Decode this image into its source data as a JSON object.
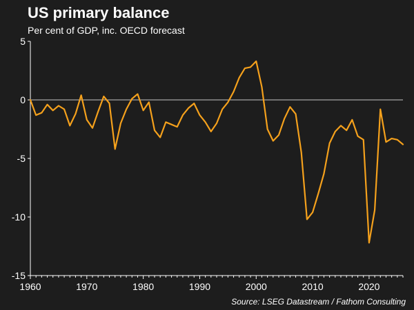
{
  "title": "US primary balance",
  "subtitle": "Per cent of GDP, inc. OECD forecast",
  "source": "Source: LSEG Datastream / Fathom Consulting",
  "colors": {
    "line": "#f5a11c",
    "background": "#1d1d1d",
    "axis": "#ffffff",
    "zero_line": "#ffffff"
  },
  "chart_data": {
    "type": "line",
    "title": "US primary balance",
    "subtitle": "Per cent of GDP, inc. OECD forecast",
    "xlabel": "",
    "ylabel": "",
    "xlim": [
      1960,
      2026
    ],
    "ylim": [
      -15,
      5
    ],
    "grid": false,
    "x_ticks": [
      1960,
      1970,
      1980,
      1990,
      2000,
      2010,
      2020
    ],
    "y_ticks": [
      5,
      0,
      -5,
      -10,
      -15
    ],
    "x_tick_labels": [
      "1960",
      "1970",
      "1980",
      "1990",
      "2000",
      "2010",
      "2020"
    ],
    "y_tick_labels": [
      "5",
      "0",
      "-5",
      "-10",
      "-15"
    ],
    "series": [
      {
        "x": [
          1960,
          1961,
          1962,
          1963,
          1964,
          1965,
          1966,
          1967,
          1968,
          1969,
          1970,
          1971,
          1972,
          1973,
          1974,
          1975,
          1976,
          1977,
          1978,
          1979,
          1980,
          1981,
          1982,
          1983,
          1984,
          1985,
          1986,
          1987,
          1988,
          1989,
          1990,
          1991,
          1992,
          1993,
          1994,
          1995,
          1996,
          1997,
          1998,
          1999,
          2000,
          2001,
          2002,
          2003,
          2004,
          2005,
          2006,
          2007,
          2008,
          2009,
          2010,
          2011,
          2012,
          2013,
          2014,
          2015,
          2016,
          2017,
          2018,
          2019,
          2020,
          2021,
          2022,
          2023,
          2024,
          2025,
          2026
        ],
        "values": [
          0.0,
          -1.3,
          -1.1,
          -0.4,
          -0.9,
          -0.5,
          -0.8,
          -2.2,
          -1.2,
          0.4,
          -1.7,
          -2.4,
          -1.0,
          0.3,
          -0.3,
          -4.2,
          -2.0,
          -0.8,
          0.1,
          0.5,
          -0.9,
          -0.2,
          -2.6,
          -3.2,
          -1.9,
          -2.1,
          -2.3,
          -1.3,
          -0.7,
          -0.3,
          -1.3,
          -1.9,
          -2.7,
          -2.0,
          -0.8,
          -0.2,
          0.7,
          1.9,
          2.7,
          2.8,
          3.3,
          1.1,
          -2.5,
          -3.5,
          -3.0,
          -1.6,
          -0.6,
          -1.2,
          -4.5,
          -10.2,
          -9.6,
          -8.0,
          -6.3,
          -3.7,
          -2.7,
          -2.2,
          -2.6,
          -1.7,
          -3.1,
          -3.4,
          -12.2,
          -9.4,
          -0.8,
          -3.6,
          -3.3,
          -3.4,
          -3.8
        ]
      }
    ]
  }
}
